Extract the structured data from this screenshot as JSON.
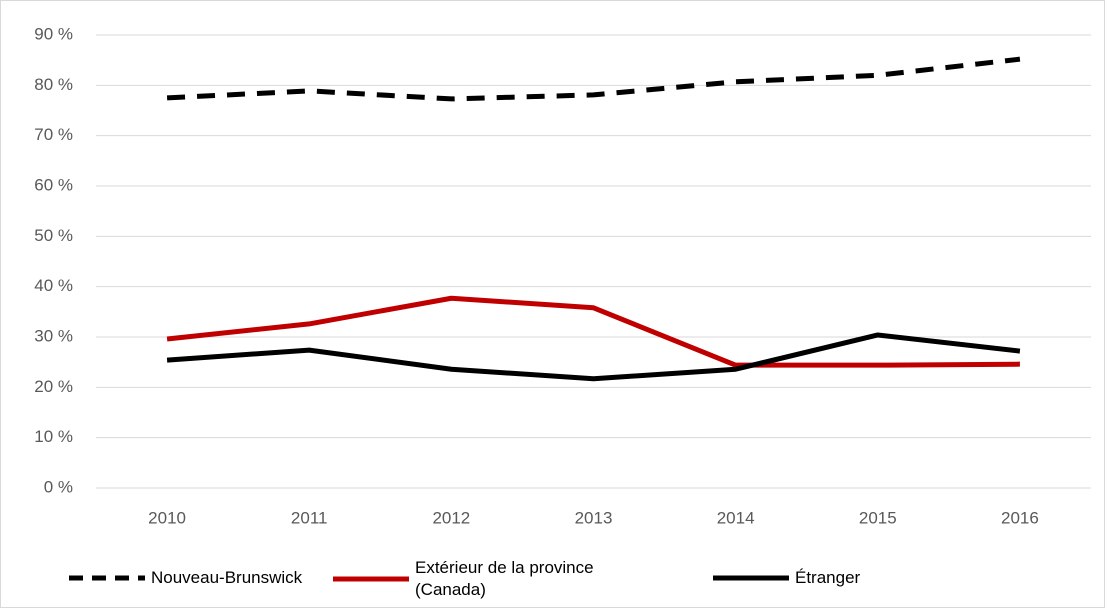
{
  "chart_data": {
    "type": "line",
    "categories": [
      "2010",
      "2011",
      "2012",
      "2013",
      "2014",
      "2015",
      "2016"
    ],
    "series": [
      {
        "name": "Nouveau-Brunswick",
        "color": "#000000",
        "line_style": "dashed",
        "values": [
          77.5,
          78.9,
          77.3,
          78.1,
          80.7,
          82.0,
          85.2
        ]
      },
      {
        "name": "Extérieur de la province (Canada)",
        "color": "#c00000",
        "line_style": "solid",
        "values": [
          29.6,
          32.6,
          37.7,
          35.8,
          24.4,
          24.4,
          24.6
        ]
      },
      {
        "name": "Étranger",
        "color": "#000000",
        "line_style": "solid",
        "values": [
          25.4,
          27.4,
          23.6,
          21.7,
          23.6,
          30.4,
          27.2
        ]
      }
    ],
    "ylim": [
      0,
      90
    ],
    "yticks": [
      {
        "value": 0,
        "label": "0 %"
      },
      {
        "value": 10,
        "label": "10 %"
      },
      {
        "value": 20,
        "label": "20 %"
      },
      {
        "value": 30,
        "label": "30 %"
      },
      {
        "value": 40,
        "label": "40 %"
      },
      {
        "value": 50,
        "label": "50 %"
      },
      {
        "value": 60,
        "label": "60 %"
      },
      {
        "value": 70,
        "label": "70 %"
      },
      {
        "value": 80,
        "label": "80 %"
      },
      {
        "value": 90,
        "label": "90 %"
      }
    ],
    "grid": true,
    "legend": "bottom"
  }
}
